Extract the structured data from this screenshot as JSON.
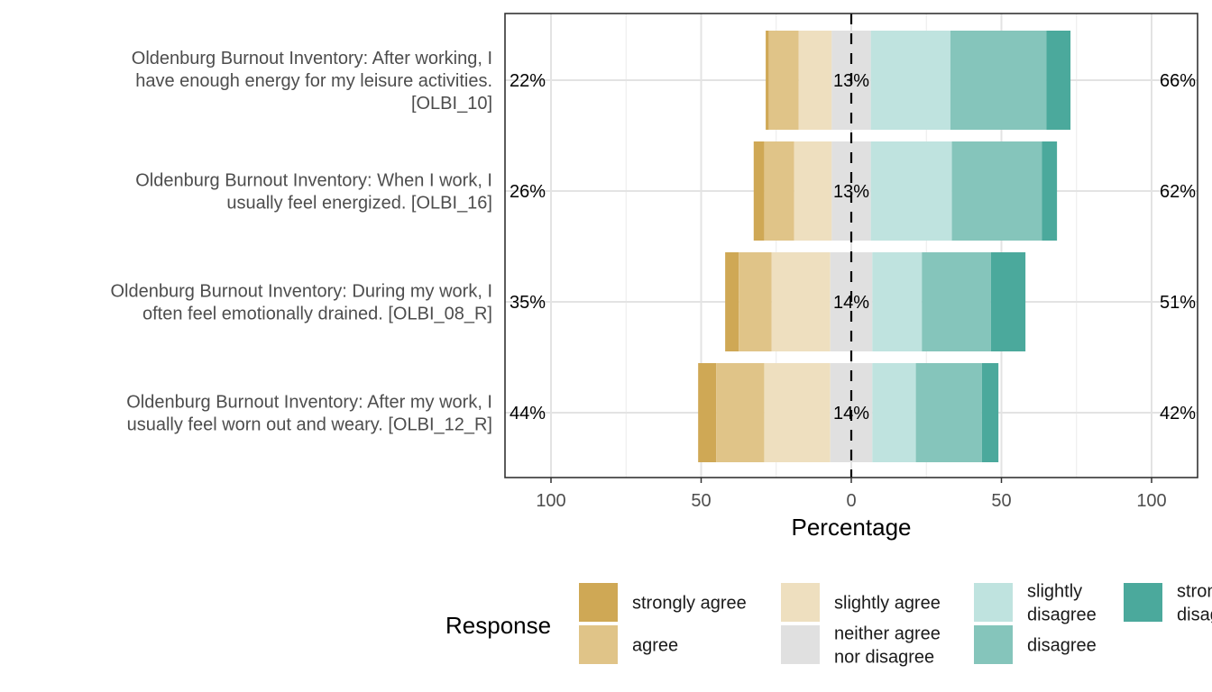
{
  "chart_data": {
    "type": "bar",
    "subtype": "diverging-stacked-likert",
    "categories": [
      "Oldenburg Burnout Inventory: After working, I have enough energy for my leisure activities. [OLBI_10]",
      "Oldenburg Burnout Inventory: When I work, I usually feel energized. [OLBI_16]",
      "Oldenburg Burnout Inventory: During my work, I often feel emotionally drained. [OLBI_08_R]",
      "Oldenburg Burnout Inventory: After my work, I usually feel worn out and weary. [OLBI_12_R]"
    ],
    "category_lines": [
      [
        "Oldenburg Burnout Inventory: After working, I",
        "have enough energy for my leisure activities.",
        "[OLBI_10]"
      ],
      [
        "Oldenburg Burnout Inventory: When I work, I",
        "usually feel energized. [OLBI_16]"
      ],
      [
        "Oldenburg Burnout Inventory: During my work, I",
        "often feel emotionally drained. [OLBI_08_R]"
      ],
      [
        "Oldenburg Burnout Inventory: After my work, I",
        "usually feel worn out and weary. [OLBI_12_R]"
      ]
    ],
    "series": [
      {
        "name": "strongly agree",
        "color": "#cfa855",
        "values": [
          1,
          3.5,
          4.5,
          6
        ]
      },
      {
        "name": "agree",
        "color": "#e0c488",
        "values": [
          10,
          10,
          11,
          16
        ]
      },
      {
        "name": "slightly agree",
        "color": "#eedfbf",
        "values": [
          11,
          12.5,
          19.5,
          22
        ]
      },
      {
        "name": "neither agree nor disagree",
        "color": "#e0e0e0",
        "values": [
          13,
          13,
          14,
          14
        ]
      },
      {
        "name": "slightly disagree",
        "color": "#bfe3df",
        "values": [
          26.5,
          27,
          16.5,
          14.5
        ]
      },
      {
        "name": "disagree",
        "color": "#85c5bb",
        "values": [
          32,
          30,
          23,
          22
        ]
      },
      {
        "name": "strongly disagree",
        "color": "#4ba99c",
        "values": [
          8,
          5,
          11.5,
          5.5
        ]
      }
    ],
    "left_pct_labels": [
      "22%",
      "26%",
      "35%",
      "44%"
    ],
    "mid_pct_labels": [
      "13%",
      "13%",
      "14%",
      "14%"
    ],
    "right_pct_labels": [
      "66%",
      "62%",
      "51%",
      "42%"
    ],
    "xlabel": "Percentage",
    "xlim": [
      -100,
      100
    ],
    "xticks": [
      -100,
      -50,
      0,
      50,
      100
    ],
    "xtick_labels": [
      "100",
      "50",
      "0",
      "50",
      "100"
    ],
    "legend_title": "Response",
    "legend_position": "bottom",
    "legend": [
      {
        "label_lines": [
          "strongly agree"
        ],
        "color": "#cfa855"
      },
      {
        "label_lines": [
          "agree"
        ],
        "color": "#e0c488"
      },
      {
        "label_lines": [
          "slightly agree"
        ],
        "color": "#eedfbf"
      },
      {
        "label_lines": [
          "neither agree",
          "nor disagree"
        ],
        "color": "#e0e0e0"
      },
      {
        "label_lines": [
          "slightly",
          "disagree"
        ],
        "color": "#bfe3df"
      },
      {
        "label_lines": [
          "disagree"
        ],
        "color": "#85c5bb"
      },
      {
        "label_lines": [
          "strongly",
          "disagree"
        ],
        "color": "#4ba99c"
      }
    ]
  }
}
